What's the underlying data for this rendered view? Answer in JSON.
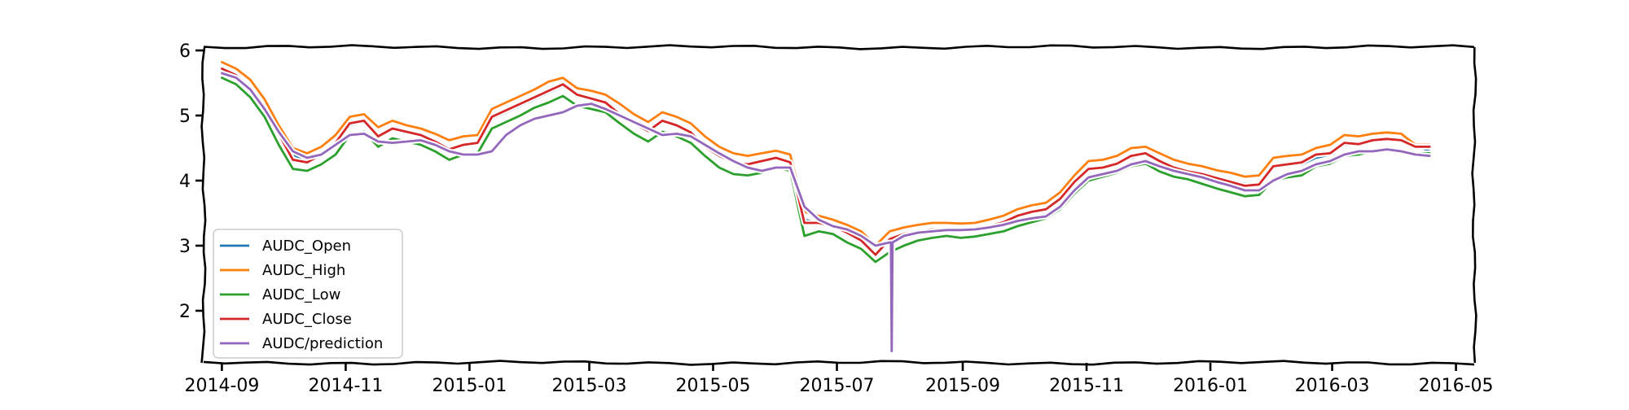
{
  "chart_data": {
    "type": "line",
    "title": "",
    "xlabel": "",
    "ylabel": "",
    "x_axis": {
      "kind": "date",
      "range": [
        "2014-08-23",
        "2016-05-10"
      ],
      "ticks": [
        "2014-09-01",
        "2014-11-01",
        "2015-01-01",
        "2015-03-01",
        "2015-05-01",
        "2015-07-01",
        "2015-09-01",
        "2015-11-01",
        "2016-01-01",
        "2016-03-01",
        "2016-05-01"
      ],
      "tick_labels": [
        "2014-09",
        "2014-11",
        "2015-01",
        "2015-03",
        "2015-05",
        "2015-07",
        "2015-09",
        "2015-11",
        "2016-01",
        "2016-03",
        "2016-05"
      ]
    },
    "y_axis": {
      "range": [
        1.2,
        6.05
      ],
      "ticks": [
        2,
        3,
        4,
        5,
        6
      ],
      "tick_labels": [
        "2",
        "3",
        "4",
        "5",
        "6"
      ]
    },
    "grid": false,
    "style": "hand-drawn (xkcd)",
    "legend": {
      "position": "lower-left",
      "entries": [
        "AUDC_Open",
        "AUDC_High",
        "AUDC_Low",
        "AUDC_Close",
        "AUDC/prediction"
      ]
    },
    "x": [
      "2014-09-01",
      "2014-09-08",
      "2014-09-15",
      "2014-09-22",
      "2014-09-29",
      "2014-10-06",
      "2014-10-13",
      "2014-10-20",
      "2014-10-27",
      "2014-11-03",
      "2014-11-10",
      "2014-11-17",
      "2014-11-24",
      "2014-12-01",
      "2014-12-08",
      "2014-12-15",
      "2014-12-22",
      "2014-12-29",
      "2015-01-05",
      "2015-01-12",
      "2015-01-19",
      "2015-01-26",
      "2015-02-02",
      "2015-02-09",
      "2015-02-16",
      "2015-02-23",
      "2015-03-02",
      "2015-03-09",
      "2015-03-16",
      "2015-03-23",
      "2015-03-30",
      "2015-04-06",
      "2015-04-13",
      "2015-04-20",
      "2015-04-27",
      "2015-05-04",
      "2015-05-11",
      "2015-05-18",
      "2015-05-25",
      "2015-06-01",
      "2015-06-08",
      "2015-06-15",
      "2015-06-22",
      "2015-06-29",
      "2015-07-06",
      "2015-07-13",
      "2015-07-20",
      "2015-07-27",
      "2015-08-03",
      "2015-08-10",
      "2015-08-17",
      "2015-08-24",
      "2015-08-31",
      "2015-09-07",
      "2015-09-14",
      "2015-09-21",
      "2015-09-28",
      "2015-10-05",
      "2015-10-12",
      "2015-10-19",
      "2015-10-26",
      "2015-11-02",
      "2015-11-09",
      "2015-11-16",
      "2015-11-23",
      "2015-11-30",
      "2015-12-07",
      "2015-12-14",
      "2015-12-21",
      "2015-12-28",
      "2016-01-04",
      "2016-01-11",
      "2016-01-18",
      "2016-01-25",
      "2016-02-01",
      "2016-02-08",
      "2016-02-15",
      "2016-02-22",
      "2016-02-29",
      "2016-03-07",
      "2016-03-14",
      "2016-03-21",
      "2016-03-28",
      "2016-04-04",
      "2016-04-11",
      "2016-04-18"
    ],
    "series": [
      {
        "name": "AUDC_Open",
        "color": "#1f77b4",
        "values": [
          5.7,
          5.62,
          5.45,
          5.15,
          4.75,
          4.4,
          4.3,
          4.4,
          4.6,
          4.85,
          4.9,
          4.7,
          4.8,
          4.75,
          4.7,
          4.62,
          4.5,
          4.55,
          4.58,
          4.95,
          5.05,
          5.15,
          5.25,
          5.35,
          5.45,
          5.3,
          5.25,
          5.2,
          5.05,
          4.9,
          4.78,
          4.9,
          4.85,
          4.75,
          4.55,
          4.4,
          4.3,
          4.25,
          4.3,
          4.35,
          4.3,
          3.4,
          3.35,
          3.3,
          3.2,
          3.1,
          2.85,
          3.05,
          3.15,
          3.2,
          3.25,
          3.25,
          3.25,
          3.25,
          3.3,
          3.35,
          3.45,
          3.5,
          3.55,
          3.7,
          3.95,
          4.15,
          4.2,
          4.25,
          4.35,
          4.4,
          4.3,
          4.2,
          4.15,
          4.1,
          4.05,
          4.0,
          3.95,
          3.95,
          4.2,
          4.25,
          4.25,
          4.35,
          4.4,
          4.55,
          4.55,
          4.6,
          4.62,
          4.6,
          4.55,
          4.45
        ]
      },
      {
        "name": "AUDC_High",
        "color": "#ff7f0e",
        "values": [
          5.82,
          5.72,
          5.55,
          5.25,
          4.85,
          4.5,
          4.42,
          4.52,
          4.7,
          4.98,
          5.02,
          4.82,
          4.92,
          4.85,
          4.8,
          4.72,
          4.62,
          4.68,
          4.7,
          5.1,
          5.2,
          5.3,
          5.4,
          5.52,
          5.58,
          5.42,
          5.38,
          5.32,
          5.18,
          5.02,
          4.9,
          5.05,
          4.98,
          4.88,
          4.68,
          4.52,
          4.42,
          4.38,
          4.42,
          4.46,
          4.4,
          3.52,
          3.46,
          3.4,
          3.32,
          3.22,
          3.0,
          3.22,
          3.28,
          3.32,
          3.35,
          3.35,
          3.34,
          3.35,
          3.4,
          3.46,
          3.56,
          3.62,
          3.66,
          3.82,
          4.08,
          4.3,
          4.32,
          4.38,
          4.5,
          4.52,
          4.42,
          4.32,
          4.26,
          4.22,
          4.16,
          4.12,
          4.06,
          4.08,
          4.35,
          4.38,
          4.4,
          4.5,
          4.55,
          4.7,
          4.68,
          4.72,
          4.74,
          4.72,
          4.55,
          4.55
        ]
      },
      {
        "name": "AUDC_Low",
        "color": "#2ca02c",
        "values": [
          5.58,
          5.48,
          5.28,
          4.98,
          4.55,
          4.18,
          4.15,
          4.25,
          4.4,
          4.7,
          4.75,
          4.52,
          4.65,
          4.6,
          4.55,
          4.45,
          4.32,
          4.4,
          4.42,
          4.8,
          4.9,
          5.0,
          5.12,
          5.2,
          5.3,
          5.15,
          5.1,
          5.05,
          4.88,
          4.72,
          4.6,
          4.75,
          4.68,
          4.58,
          4.38,
          4.2,
          4.1,
          4.08,
          4.12,
          4.2,
          4.15,
          3.15,
          3.22,
          3.18,
          3.05,
          2.95,
          2.75,
          2.9,
          3.0,
          3.08,
          3.12,
          3.15,
          3.12,
          3.14,
          3.18,
          3.22,
          3.3,
          3.36,
          3.42,
          3.56,
          3.8,
          4.0,
          4.06,
          4.12,
          4.22,
          4.26,
          4.14,
          4.06,
          4.02,
          3.95,
          3.88,
          3.82,
          3.76,
          3.78,
          4.0,
          4.05,
          4.08,
          4.22,
          4.26,
          4.38,
          4.4,
          4.45,
          4.48,
          4.46,
          4.42,
          4.42
        ]
      },
      {
        "name": "AUDC_Close",
        "color": "#d62728",
        "values": [
          5.72,
          5.62,
          5.42,
          5.12,
          4.72,
          4.32,
          4.28,
          4.4,
          4.58,
          4.88,
          4.92,
          4.68,
          4.8,
          4.75,
          4.7,
          4.6,
          4.48,
          4.55,
          4.58,
          4.98,
          5.08,
          5.18,
          5.28,
          5.38,
          5.48,
          5.32,
          5.26,
          5.2,
          5.02,
          4.88,
          4.76,
          4.92,
          4.85,
          4.74,
          4.52,
          4.38,
          4.28,
          4.25,
          4.3,
          4.35,
          4.28,
          3.35,
          3.35,
          3.3,
          3.2,
          3.08,
          2.86,
          3.1,
          3.18,
          3.22,
          3.25,
          3.25,
          3.24,
          3.26,
          3.3,
          3.36,
          3.46,
          3.52,
          3.56,
          3.72,
          3.98,
          4.18,
          4.2,
          4.26,
          4.38,
          4.42,
          4.3,
          4.2,
          4.14,
          4.1,
          4.04,
          3.98,
          3.92,
          3.94,
          4.22,
          4.25,
          4.28,
          4.4,
          4.42,
          4.58,
          4.56,
          4.62,
          4.64,
          4.62,
          4.52,
          4.52
        ]
      },
      {
        "name": "AUDC/prediction",
        "color": "#9467bd",
        "values": [
          5.65,
          5.58,
          5.4,
          5.1,
          4.75,
          4.45,
          4.35,
          4.4,
          4.55,
          4.7,
          4.72,
          4.6,
          4.58,
          4.6,
          4.62,
          4.55,
          4.45,
          4.4,
          4.4,
          4.45,
          4.7,
          4.85,
          4.95,
          5.0,
          5.05,
          5.15,
          5.18,
          5.1,
          5.0,
          4.9,
          4.8,
          4.7,
          4.72,
          4.68,
          4.55,
          4.42,
          4.3,
          4.2,
          4.15,
          4.2,
          4.2,
          3.6,
          3.4,
          3.3,
          3.25,
          3.15,
          3.0,
          3.05,
          3.15,
          3.2,
          3.22,
          3.24,
          3.24,
          3.25,
          3.28,
          3.32,
          3.38,
          3.42,
          3.45,
          3.6,
          3.85,
          4.05,
          4.1,
          4.15,
          4.25,
          4.3,
          4.22,
          4.15,
          4.1,
          4.05,
          3.98,
          3.92,
          3.85,
          3.85,
          4.0,
          4.1,
          4.15,
          4.25,
          4.3,
          4.4,
          4.45,
          4.45,
          4.48,
          4.45,
          4.4,
          4.38
        ]
      }
    ],
    "annotations": [
      {
        "series": "AUDC/prediction",
        "x": "2015-07-28",
        "y": 1.38,
        "label": ""
      }
    ]
  }
}
